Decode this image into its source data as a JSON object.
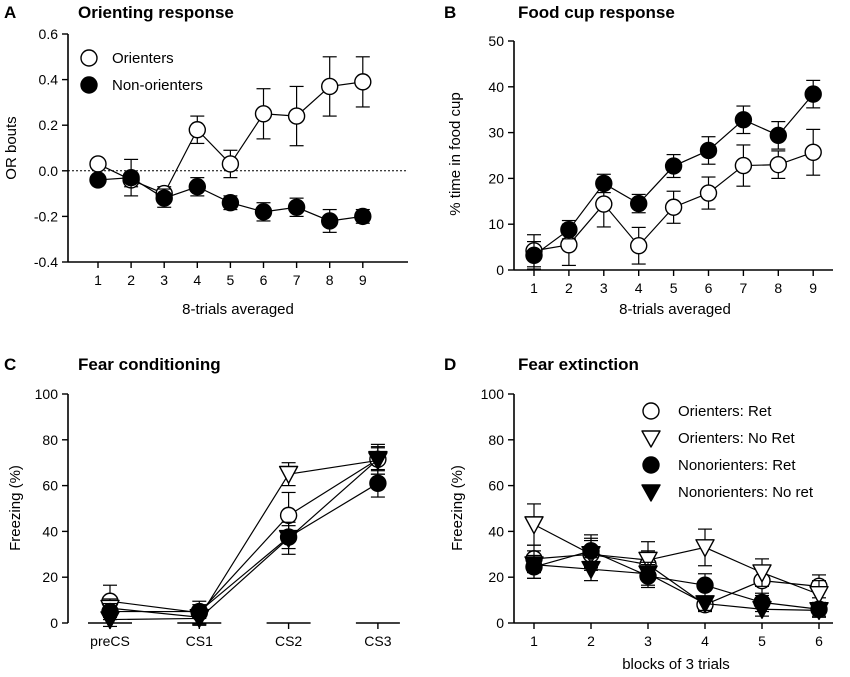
{
  "chart_data": [
    {
      "type": "line",
      "panel": "A",
      "title": "Orienting response",
      "xlabel": "8-trials averaged",
      "ylabel": "OR bouts",
      "categories": [
        "1",
        "2",
        "3",
        "4",
        "5",
        "6",
        "7",
        "8",
        "9"
      ],
      "ylim": [
        -0.4,
        0.6
      ],
      "yticks": [
        -0.4,
        -0.2,
        0.0,
        0.2,
        0.4,
        0.6
      ],
      "ytick_labels": [
        "-0.4",
        "-0.2",
        "0.0",
        "0.2",
        "0.4",
        "0.6"
      ],
      "reference_line": 0.0,
      "legend_position": "top-left",
      "series": [
        {
          "name": "Orienters",
          "marker": "circle-open",
          "values": [
            0.03,
            -0.04,
            -0.1,
            0.18,
            0.03,
            0.25,
            0.24,
            0.37,
            0.39
          ],
          "errors": [
            0.01,
            0.03,
            0.03,
            0.06,
            0.06,
            0.11,
            0.13,
            0.13,
            0.11
          ]
        },
        {
          "name": "Non-orienters",
          "marker": "circle-filled",
          "values": [
            -0.04,
            -0.03,
            -0.12,
            -0.07,
            -0.14,
            -0.18,
            -0.16,
            -0.22,
            -0.2
          ],
          "errors": [
            0.02,
            0.08,
            0.04,
            0.04,
            0.03,
            0.04,
            0.04,
            0.05,
            0.03
          ]
        }
      ]
    },
    {
      "type": "line",
      "panel": "B",
      "title": "Food cup response",
      "xlabel": "8-trials averaged",
      "ylabel": "% time in food cup",
      "categories": [
        "1",
        "2",
        "3",
        "4",
        "5",
        "6",
        "7",
        "8",
        "9"
      ],
      "ylim": [
        0,
        50
      ],
      "yticks": [
        0,
        10,
        20,
        30,
        40,
        50
      ],
      "ytick_labels": [
        "0",
        "10",
        "20",
        "30",
        "40",
        "50"
      ],
      "series": [
        {
          "name": "Orienters",
          "marker": "circle-open",
          "values": [
            4.2,
            5.5,
            14.4,
            5.3,
            13.7,
            16.8,
            22.8,
            23.0,
            25.7
          ],
          "errors": [
            3.5,
            4.5,
            5.0,
            4.0,
            3.5,
            3.5,
            4.5,
            3.0,
            5.0
          ]
        },
        {
          "name": "Non-orienters",
          "marker": "circle-filled",
          "values": [
            3.2,
            8.8,
            18.9,
            14.5,
            22.7,
            26.1,
            32.8,
            29.4,
            38.4
          ],
          "errors": [
            3.0,
            2.0,
            2.0,
            2.0,
            2.5,
            3.0,
            3.0,
            3.0,
            3.0
          ]
        }
      ]
    },
    {
      "type": "line",
      "panel": "C",
      "title": "Fear conditioning",
      "xlabel": "",
      "ylabel": "Freezing (%)",
      "categories": [
        "preCS",
        "CS1",
        "CS2",
        "CS3"
      ],
      "ylim": [
        0,
        100
      ],
      "yticks": [
        0,
        20,
        40,
        60,
        80,
        100
      ],
      "ytick_labels": [
        "0",
        "20",
        "40",
        "60",
        "80",
        "100"
      ],
      "series": [
        {
          "name": "Orienters: Ret",
          "marker": "circle-open",
          "values": [
            9.5,
            4.5,
            47.0,
            71.5
          ],
          "errors": [
            7.0,
            5.0,
            10.0,
            6.5
          ]
        },
        {
          "name": "Orienters: No Ret",
          "marker": "triangle-down-open",
          "values": [
            6.5,
            2.5,
            65.0,
            71.0
          ],
          "errors": [
            4.0,
            3.0,
            5.0,
            6.0
          ]
        },
        {
          "name": "Nonorienters: Ret",
          "marker": "circle-filled",
          "values": [
            5.0,
            5.0,
            37.5,
            61.0
          ],
          "errors": [
            3.5,
            3.0,
            5.0,
            6.0
          ]
        },
        {
          "name": "Nonorienters: No ret",
          "marker": "triangle-down-filled",
          "values": [
            1.5,
            2.0,
            37.0,
            71.5
          ],
          "errors": [
            3.0,
            3.0,
            7.0,
            5.0
          ]
        }
      ]
    },
    {
      "type": "line",
      "panel": "D",
      "title": "Fear extinction",
      "xlabel": "blocks of 3 trials",
      "ylabel": "Freezing (%)",
      "categories": [
        "1",
        "2",
        "3",
        "4",
        "5",
        "6"
      ],
      "ylim": [
        0,
        100
      ],
      "yticks": [
        0,
        20,
        40,
        60,
        80,
        100
      ],
      "ytick_labels": [
        "0",
        "20",
        "40",
        "60",
        "80",
        "100"
      ],
      "legend_position": "top-right",
      "series": [
        {
          "name": "Orienters: Ret",
          "marker": "circle-open",
          "values": [
            28.0,
            30.0,
            25.5,
            8.0,
            18.5,
            16.0
          ],
          "errors": [
            6.0,
            7.0,
            6.0,
            3.0,
            6.5,
            5.0
          ]
        },
        {
          "name": "Orienters: No Ret",
          "marker": "triangle-down-open",
          "values": [
            43.0,
            30.0,
            27.5,
            33.0,
            22.0,
            12.5
          ],
          "errors": [
            9.0,
            6.0,
            8.0,
            8.0,
            6.0,
            6.0
          ]
        },
        {
          "name": "Nonorienters: Ret",
          "marker": "circle-filled",
          "values": [
            24.5,
            31.5,
            20.5,
            16.5,
            9.0,
            6.0
          ],
          "errors": [
            5.0,
            7.0,
            5.0,
            5.0,
            4.0,
            3.0
          ]
        },
        {
          "name": "Nonorienters: No ret",
          "marker": "triangle-down-filled",
          "values": [
            25.5,
            23.5,
            21.5,
            8.5,
            6.0,
            5.5
          ],
          "errors": [
            6.0,
            5.0,
            5.0,
            3.0,
            3.0,
            3.0
          ]
        }
      ]
    }
  ]
}
